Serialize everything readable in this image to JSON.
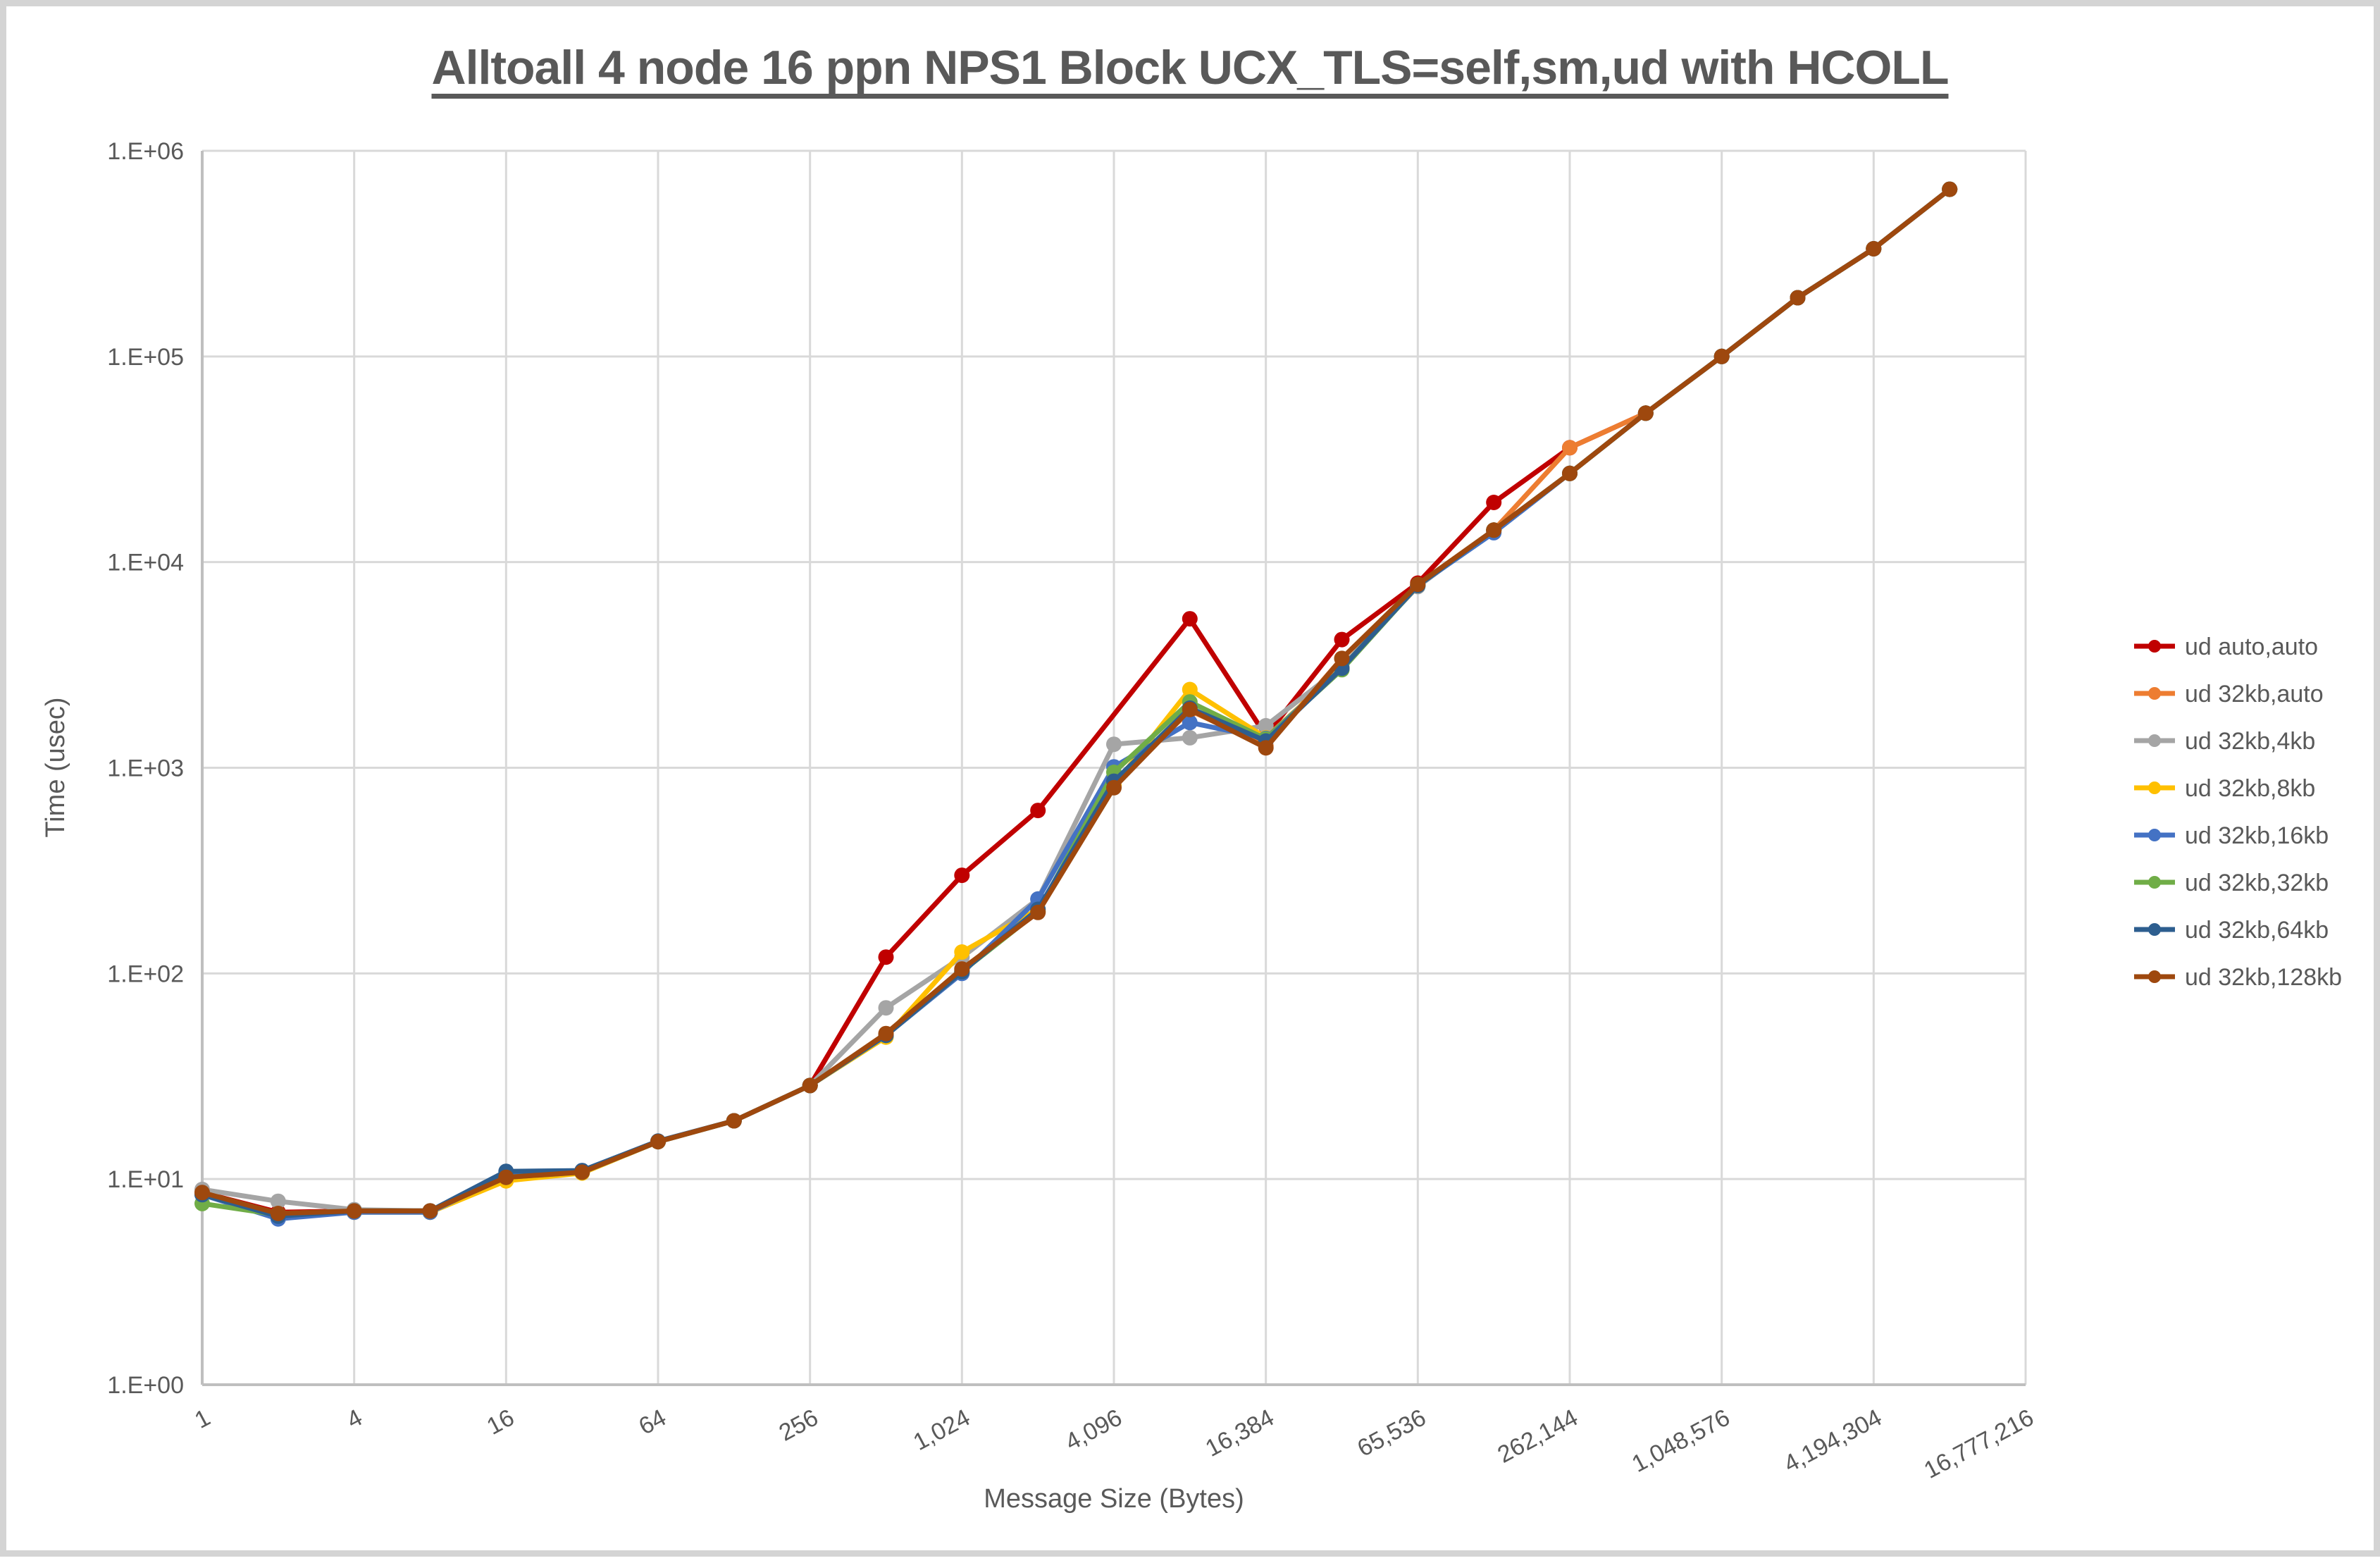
{
  "page": {
    "title": "Alltoall 4 node 16 ppn NPS1 Block UCX_TLS=self,sm,ud with HCOLL"
  },
  "colors": {
    "grid": "#d9d9d9",
    "axis": "#bfbfbf",
    "text": "#595959",
    "background": "#ffffff"
  },
  "chart_data": {
    "type": "line",
    "title": "Alltoall 4 node 16 ppn NPS1 Block UCX_TLS=self,sm,ud with HCOLL",
    "xlabel": "Message Size (Bytes)",
    "ylabel": "Time (usec)",
    "x_scale": "log2 categories (1 .. 16,777,216)",
    "y_scale": "log10",
    "ylim": [
      1,
      1000000
    ],
    "grid": true,
    "legend_position": "right",
    "y_tick_labels": [
      "1.E+00",
      "1.E+01",
      "1.E+02",
      "1.E+03",
      "1.E+04",
      "1.E+05",
      "1.E+06"
    ],
    "x_tick_labels": [
      "1",
      "4",
      "16",
      "64",
      "256",
      "1,024",
      "4,096",
      "16,384",
      "65,536",
      "262,144",
      "1,048,576",
      "4,194,304",
      "16,777,216"
    ],
    "x_bytes": [
      1,
      2,
      4,
      8,
      16,
      32,
      64,
      128,
      256,
      512,
      1024,
      2048,
      4096,
      8192,
      16384,
      32768,
      65536,
      131072,
      262144,
      524288,
      1048576,
      2097152,
      4194304,
      8388608
    ],
    "series": [
      {
        "name": "ud auto,auto",
        "color": "#c00000",
        "values": [
          8.6,
          6.9,
          7.0,
          7.0,
          10.2,
          10.8,
          15.2,
          19.2,
          28.5,
          120,
          300,
          620,
          null,
          5300,
          1430,
          4200,
          7900,
          19500,
          36000,
          53000,
          100000,
          193000,
          334000,
          650000
        ]
      },
      {
        "name": "ud 32kb,auto",
        "color": "#ed7d31",
        "values": [
          8.5,
          6.8,
          7.0,
          7.0,
          10.2,
          10.8,
          15.2,
          19.2,
          28.5,
          50,
          103,
          200,
          820,
          1900,
          1280,
          3400,
          7700,
          14300,
          36000,
          53000,
          100000,
          193000,
          334000,
          650000
        ]
      },
      {
        "name": "ud 32kb,4kb",
        "color": "#a5a5a5",
        "values": [
          8.9,
          7.8,
          7.1,
          7.0,
          10.3,
          10.8,
          15.2,
          19.2,
          28.5,
          68,
          120,
          230,
          1300,
          1400,
          1600,
          3100,
          7600,
          14300,
          27000,
          53000,
          100000,
          193000,
          334000,
          650000
        ]
      },
      {
        "name": "ud 32kb,8kb",
        "color": "#ffc000",
        "values": [
          8.5,
          6.7,
          6.9,
          6.9,
          9.8,
          10.7,
          15.2,
          19.2,
          28.5,
          49,
          127,
          205,
          820,
          2400,
          1400,
          3050,
          7700,
          14300,
          27000,
          53000,
          100000,
          193000,
          334000,
          650000
        ]
      },
      {
        "name": "ud 32kb,16kb",
        "color": "#4472c4",
        "values": [
          8.4,
          6.4,
          6.9,
          6.9,
          10.4,
          10.8,
          15.2,
          19.2,
          28.5,
          50,
          100,
          230,
          1010,
          1660,
          1390,
          3030,
          7700,
          13900,
          27000,
          53000,
          100000,
          193000,
          334000,
          650000
        ]
      },
      {
        "name": "ud 32kb,32kb",
        "color": "#70ad47",
        "values": [
          7.6,
          6.7,
          7.0,
          7.0,
          10.2,
          10.8,
          15.2,
          19.2,
          28.5,
          50,
          102,
          200,
          950,
          2090,
          1380,
          3000,
          7700,
          14300,
          27000,
          53000,
          100000,
          193000,
          334000,
          650000
        ]
      },
      {
        "name": "ud 32kb,64kb",
        "color": "#2d5e8f",
        "values": [
          8.4,
          6.6,
          7.0,
          7.0,
          10.9,
          11.0,
          15.3,
          19.2,
          28.5,
          50,
          102,
          205,
          860,
          1950,
          1350,
          3050,
          7700,
          14300,
          27000,
          53000,
          100000,
          193000,
          334000,
          650000
        ]
      },
      {
        "name": "ud 32kb,128kb",
        "color": "#9e480e",
        "values": [
          8.6,
          6.8,
          7.0,
          7.0,
          10.2,
          10.8,
          15.2,
          19.2,
          28.5,
          51,
          105,
          198,
          800,
          1920,
          1250,
          3400,
          7800,
          14300,
          27000,
          53000,
          100000,
          193000,
          334000,
          650000
        ]
      }
    ]
  }
}
